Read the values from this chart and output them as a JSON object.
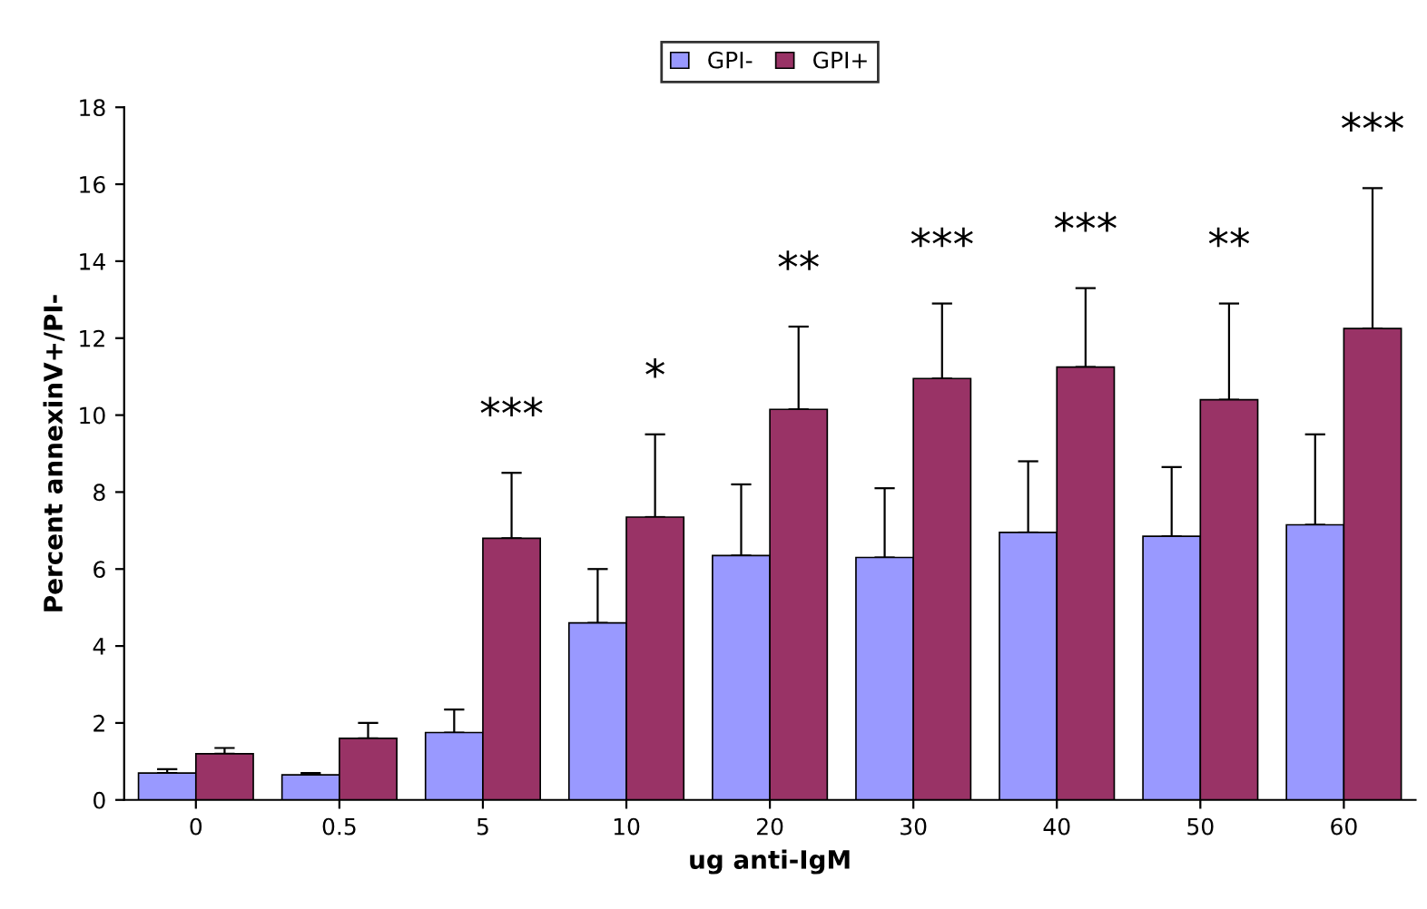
{
  "chart_data": {
    "type": "bar",
    "xlabel": "ug anti-IgM",
    "ylabel": "Percent annexinV+/PI-",
    "categories": [
      "0",
      "0.5",
      "5",
      "10",
      "20",
      "30",
      "40",
      "50",
      "60"
    ],
    "series": [
      {
        "name": "GPI-",
        "color": "#9999ff",
        "values": [
          0.7,
          0.65,
          1.75,
          4.6,
          6.35,
          6.3,
          6.95,
          6.85,
          7.15
        ],
        "errors": [
          [
            0.7,
            0.8
          ],
          [
            0.65,
            0.7
          ],
          [
            1.75,
            2.35
          ],
          [
            4.6,
            6.0
          ],
          [
            6.35,
            8.2
          ],
          [
            6.3,
            8.1
          ],
          [
            6.95,
            8.8
          ],
          [
            6.85,
            8.65
          ],
          [
            7.15,
            9.5
          ]
        ]
      },
      {
        "name": "GPI+",
        "color": "#993366",
        "values": [
          1.2,
          1.6,
          6.8,
          7.35,
          10.15,
          10.95,
          11.25,
          10.4,
          12.25
        ],
        "errors": [
          [
            1.2,
            1.35
          ],
          [
            1.6,
            2.0
          ],
          [
            6.8,
            8.5
          ],
          [
            7.35,
            9.5
          ],
          [
            10.15,
            12.3
          ],
          [
            10.95,
            12.9
          ],
          [
            11.25,
            13.3
          ],
          [
            10.4,
            12.9
          ],
          [
            12.25,
            15.9
          ]
        ]
      }
    ],
    "ylim": [
      0,
      18
    ],
    "yticks": [
      0,
      2,
      4,
      6,
      8,
      10,
      12,
      14,
      16,
      18
    ],
    "grid": false,
    "legend": "top",
    "annotations": [
      "***",
      "*",
      "**",
      "***",
      "***",
      "**",
      "***"
    ]
  }
}
